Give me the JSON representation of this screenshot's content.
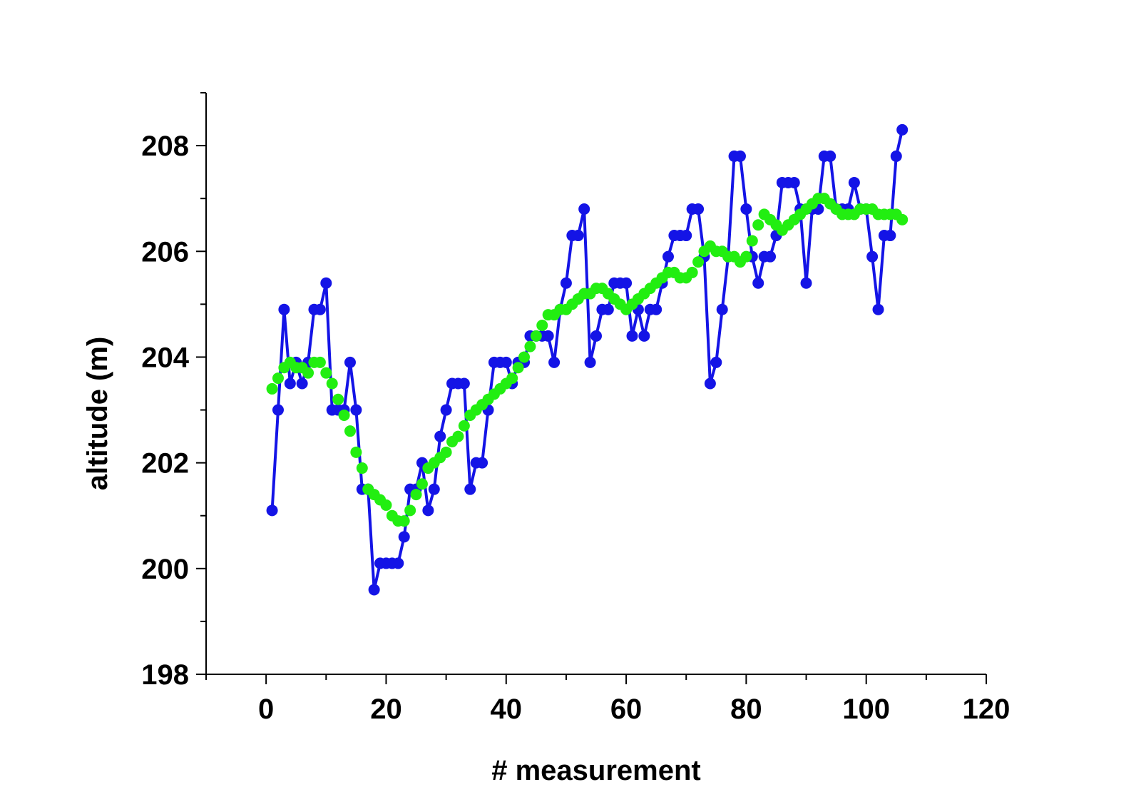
{
  "chart_data": {
    "type": "line",
    "xlabel": "# measurement",
    "ylabel": "altitude (m)",
    "xlim": [
      -10,
      120
    ],
    "ylim": [
      198,
      209
    ],
    "xticks": [
      0,
      20,
      40,
      60,
      80,
      100,
      120
    ],
    "yticks": [
      198,
      200,
      202,
      204,
      206,
      208
    ],
    "x_minor_step": 10,
    "y_minor_step": 1,
    "grid": false,
    "series": [
      {
        "color": "#1414e6",
        "marker": "circle",
        "line": true,
        "x": [
          1,
          2,
          3,
          4,
          5,
          6,
          7,
          8,
          9,
          10,
          11,
          12,
          13,
          14,
          15,
          16,
          17,
          18,
          19,
          20,
          21,
          22,
          23,
          24,
          25,
          26,
          27,
          28,
          29,
          30,
          31,
          32,
          33,
          34,
          35,
          36,
          37,
          38,
          39,
          40,
          41,
          42,
          43,
          44,
          45,
          46,
          47,
          48,
          49,
          50,
          51,
          52,
          53,
          54,
          55,
          56,
          57,
          58,
          59,
          60,
          61,
          62,
          63,
          64,
          65,
          66,
          67,
          68,
          69,
          70,
          71,
          72,
          73,
          74,
          75,
          76,
          77,
          78,
          79,
          80,
          81,
          82,
          83,
          84,
          85,
          86,
          87,
          88,
          89,
          90,
          91,
          92,
          93,
          94,
          95,
          96,
          97,
          98,
          99,
          100,
          101,
          102,
          103,
          104,
          105,
          106
        ],
        "y": [
          201.1,
          203.0,
          204.9,
          203.5,
          203.9,
          203.5,
          203.9,
          204.9,
          204.9,
          205.4,
          203.0,
          203.0,
          203.0,
          203.9,
          203.0,
          201.5,
          201.5,
          199.6,
          200.1,
          200.1,
          200.1,
          200.1,
          200.6,
          201.5,
          201.5,
          202.0,
          201.1,
          201.5,
          202.5,
          203.0,
          203.5,
          203.5,
          203.5,
          201.5,
          202.0,
          202.0,
          203.0,
          203.9,
          203.9,
          203.9,
          203.5,
          203.9,
          203.9,
          204.4,
          204.4,
          204.4,
          204.4,
          203.9,
          204.9,
          205.4,
          206.3,
          206.3,
          206.8,
          203.9,
          204.4,
          204.9,
          204.9,
          205.4,
          205.4,
          205.4,
          204.4,
          204.9,
          204.4,
          204.9,
          204.9,
          205.4,
          205.9,
          206.3,
          206.3,
          206.3,
          206.8,
          206.8,
          205.9,
          203.5,
          203.9,
          204.9,
          205.9,
          207.8,
          207.8,
          206.8,
          205.9,
          205.4,
          205.9,
          205.9,
          206.3,
          207.3,
          207.3,
          207.3,
          206.8,
          205.4,
          206.8,
          206.8,
          207.8,
          207.8,
          206.8,
          206.8,
          206.8,
          207.3,
          206.8,
          206.8,
          205.9,
          204.9,
          206.3,
          206.3,
          207.8,
          208.3
        ]
      },
      {
        "color": "#22ee11",
        "marker": "circle",
        "line": false,
        "x": [
          1,
          2,
          3,
          4,
          5,
          6,
          7,
          8,
          9,
          10,
          11,
          12,
          13,
          14,
          15,
          16,
          17,
          18,
          19,
          20,
          21,
          22,
          23,
          24,
          25,
          26,
          27,
          28,
          29,
          30,
          31,
          32,
          33,
          34,
          35,
          36,
          37,
          38,
          39,
          40,
          41,
          42,
          43,
          44,
          45,
          46,
          47,
          48,
          49,
          50,
          51,
          52,
          53,
          54,
          55,
          56,
          57,
          58,
          59,
          60,
          61,
          62,
          63,
          64,
          65,
          66,
          67,
          68,
          69,
          70,
          71,
          72,
          73,
          74,
          75,
          76,
          77,
          78,
          79,
          80,
          81,
          82,
          83,
          84,
          85,
          86,
          87,
          88,
          89,
          90,
          91,
          92,
          93,
          94,
          95,
          96,
          97,
          98,
          99,
          100,
          101,
          102,
          103,
          104,
          105,
          106
        ],
        "y": [
          203.4,
          203.6,
          203.8,
          203.9,
          203.8,
          203.8,
          203.7,
          203.9,
          203.9,
          203.7,
          203.5,
          203.2,
          202.9,
          202.6,
          202.2,
          201.9,
          201.5,
          201.4,
          201.3,
          201.2,
          201.0,
          200.9,
          200.9,
          201.1,
          201.4,
          201.6,
          201.9,
          202.0,
          202.1,
          202.2,
          202.4,
          202.5,
          202.7,
          202.9,
          203.0,
          203.1,
          203.2,
          203.3,
          203.4,
          203.5,
          203.6,
          203.8,
          204.0,
          204.2,
          204.4,
          204.6,
          204.8,
          204.8,
          204.9,
          204.9,
          205.0,
          205.1,
          205.2,
          205.2,
          205.3,
          205.3,
          205.2,
          205.1,
          205.0,
          204.9,
          205.0,
          205.1,
          205.2,
          205.3,
          205.4,
          205.5,
          205.6,
          205.6,
          205.5,
          205.5,
          205.6,
          205.8,
          206.0,
          206.1,
          206.0,
          206.0,
          205.9,
          205.9,
          205.8,
          205.9,
          206.2,
          206.5,
          206.7,
          206.6,
          206.5,
          206.4,
          206.5,
          206.6,
          206.7,
          206.8,
          206.9,
          207.0,
          207.0,
          206.9,
          206.8,
          206.7,
          206.7,
          206.7,
          206.8,
          206.8,
          206.8,
          206.7,
          206.7,
          206.7,
          206.7,
          206.6
        ]
      }
    ]
  }
}
